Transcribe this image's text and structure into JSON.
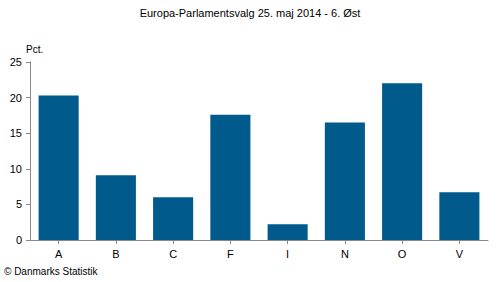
{
  "chart_data": {
    "type": "bar",
    "title": "Europa-Parlamentsvalg 25. maj 2014 - 6. Øst",
    "y_label": "Pct.",
    "source": "© Danmarks Statistik",
    "categories": [
      "A",
      "B",
      "C",
      "F",
      "I",
      "N",
      "O",
      "V"
    ],
    "values": [
      20.3,
      9.1,
      6.0,
      17.6,
      2.2,
      16.5,
      22.0,
      6.7
    ],
    "color": "#005b8c",
    "ylim": [
      0,
      25
    ],
    "yticks": [
      0,
      5,
      10,
      15,
      20,
      25
    ],
    "grid": false
  }
}
